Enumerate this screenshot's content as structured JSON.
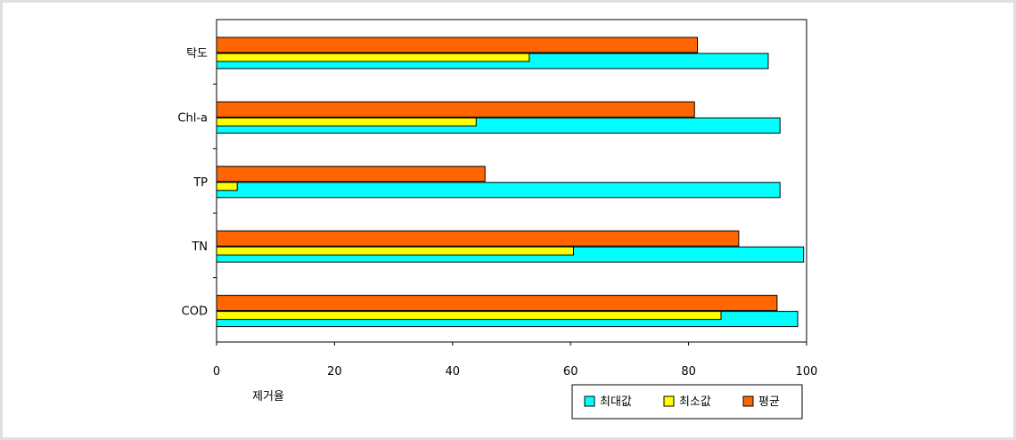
{
  "chart_data": {
    "type": "bar",
    "orientation": "horizontal",
    "categories": [
      "탁도",
      "Chl-a",
      "TP",
      "TN",
      "COD"
    ],
    "series": [
      {
        "name": "평균",
        "values": [
          81.5,
          81.0,
          45.5,
          88.5,
          95.0
        ]
      },
      {
        "name": "최소값",
        "values": [
          53.0,
          44.0,
          3.5,
          60.5,
          85.5
        ]
      },
      {
        "name": "최대값",
        "values": [
          93.5,
          95.5,
          95.5,
          99.5,
          98.5
        ]
      }
    ],
    "colors": {
      "최대값": "#00ffff",
      "최소값": "#ffff00",
      "평균": "#ff6600"
    },
    "xlabel": "제거율",
    "xlim": [
      0,
      100
    ],
    "xticks": [
      0,
      20,
      40,
      60,
      80,
      100
    ],
    "legend": {
      "position": "bottom-right",
      "order": [
        "최대값",
        "최소값",
        "평균"
      ]
    }
  }
}
